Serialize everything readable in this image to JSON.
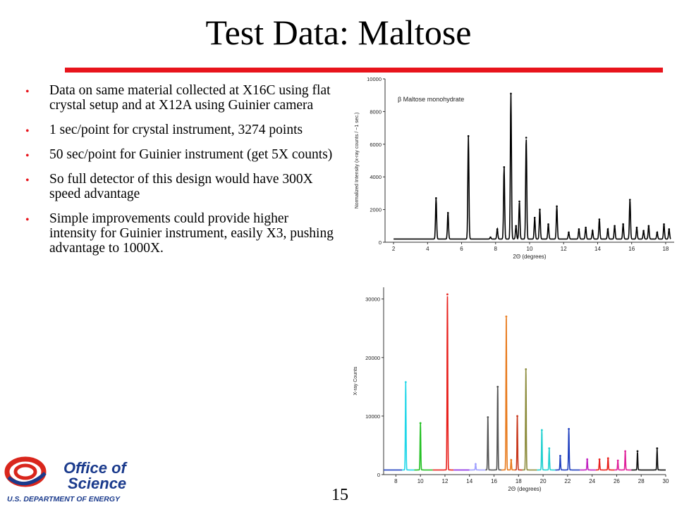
{
  "slide": {
    "title": "Test Data: Maltose",
    "page_number": "15",
    "bullets": [
      "Data on same material collected at X16C using flat crystal setup and at X12A using Guinier camera",
      "1 sec/point for crystal instrument, 3274 points",
      "50 sec/point for Guinier instrument (get 5X counts)",
      "So full detector of this design would have 300X speed advantage",
      "Simple improvements could provide higher intensity for Guinier instrument, easily X3, pushing advantage to 1000X."
    ],
    "accent_color": "#e8141c"
  },
  "logo": {
    "line1": "Office of",
    "line2": "Science",
    "line3": "U.S. DEPARTMENT OF ENERGY",
    "color": "#1a3a8c",
    "swirl_color": "#d9261c"
  },
  "chart_data": [
    {
      "type": "line",
      "title": "",
      "annotation": "β Maltose monohydrate",
      "xlabel": "2Θ (degrees)",
      "ylabel": "Normalized Intensity (x-ray counts / ~1 sec.)",
      "xlim": [
        1.5,
        18.5
      ],
      "ylim": [
        0,
        10000
      ],
      "xticks": [
        2,
        4,
        6,
        8,
        10,
        12,
        14,
        16,
        18
      ],
      "yticks": [
        0,
        2000,
        4000,
        6000,
        8000,
        10000
      ],
      "baseline": 200,
      "color": "#000000",
      "peaks": [
        {
          "x": 4.5,
          "y": 2700
        },
        {
          "x": 5.2,
          "y": 1800
        },
        {
          "x": 6.4,
          "y": 6500
        },
        {
          "x": 7.7,
          "y": 300
        },
        {
          "x": 8.1,
          "y": 800
        },
        {
          "x": 8.5,
          "y": 4600
        },
        {
          "x": 8.9,
          "y": 9100
        },
        {
          "x": 9.2,
          "y": 1000
        },
        {
          "x": 9.4,
          "y": 2500
        },
        {
          "x": 9.8,
          "y": 6400
        },
        {
          "x": 10.3,
          "y": 1500
        },
        {
          "x": 10.6,
          "y": 2000
        },
        {
          "x": 11.1,
          "y": 1100
        },
        {
          "x": 11.6,
          "y": 2200
        },
        {
          "x": 12.3,
          "y": 600
        },
        {
          "x": 12.9,
          "y": 800
        },
        {
          "x": 13.3,
          "y": 900
        },
        {
          "x": 13.7,
          "y": 700
        },
        {
          "x": 14.1,
          "y": 1400
        },
        {
          "x": 14.6,
          "y": 800
        },
        {
          "x": 15.0,
          "y": 1000
        },
        {
          "x": 15.5,
          "y": 1100
        },
        {
          "x": 15.9,
          "y": 2600
        },
        {
          "x": 16.3,
          "y": 900
        },
        {
          "x": 16.7,
          "y": 700
        },
        {
          "x": 17.0,
          "y": 1000
        },
        {
          "x": 17.5,
          "y": 600
        },
        {
          "x": 17.9,
          "y": 1100
        },
        {
          "x": 18.2,
          "y": 800
        }
      ]
    },
    {
      "type": "line",
      "title": "",
      "xlabel": "2Θ (degrees)",
      "ylabel": "X-ray Counts",
      "xlim": [
        7,
        30
      ],
      "ylim": [
        0,
        32000
      ],
      "xticks": [
        8,
        10,
        12,
        14,
        16,
        18,
        20,
        22,
        24,
        26,
        28,
        30
      ],
      "yticks": [
        0,
        10000,
        20000,
        30000
      ],
      "baseline": 800,
      "segments": [
        {
          "color": "#1f3fbf",
          "x_range": [
            7,
            8.5
          ],
          "peaks": []
        },
        {
          "color": "#1fd6e8",
          "x_range": [
            8.5,
            9.5
          ],
          "peaks": [
            {
              "x": 8.8,
              "y": 15800
            }
          ]
        },
        {
          "color": "#22c022",
          "x_range": [
            9.5,
            11
          ],
          "peaks": [
            {
              "x": 10.0,
              "y": 8800
            }
          ]
        },
        {
          "color": "#e8201c",
          "x_range": [
            11,
            12.7
          ],
          "peaks": [
            {
              "x": 12.2,
              "y": 30800
            }
          ]
        },
        {
          "color": "#8a2be2",
          "x_range": [
            12.7,
            14
          ],
          "peaks": []
        },
        {
          "color": "#a0a0ff",
          "x_range": [
            14,
            15.3
          ],
          "peaks": [
            {
              "x": 14.5,
              "y": 1800
            }
          ]
        },
        {
          "color": "#555555",
          "x_range": [
            15.3,
            16.6
          ],
          "peaks": [
            {
              "x": 15.5,
              "y": 9800
            },
            {
              "x": 16.3,
              "y": 15000
            }
          ]
        },
        {
          "color": "#e87a1c",
          "x_range": [
            16.6,
            17.7
          ],
          "peaks": [
            {
              "x": 17.0,
              "y": 27000
            },
            {
              "x": 17.4,
              "y": 2500
            }
          ]
        },
        {
          "color": "#c8381c",
          "x_range": [
            17.7,
            18.3
          ],
          "peaks": [
            {
              "x": 17.9,
              "y": 10000
            }
          ]
        },
        {
          "color": "#8c8c3c",
          "x_range": [
            18.3,
            19.5
          ],
          "peaks": [
            {
              "x": 18.6,
              "y": 18000
            }
          ]
        },
        {
          "color": "#20d0d0",
          "x_range": [
            19.5,
            21
          ],
          "peaks": [
            {
              "x": 19.9,
              "y": 7600
            },
            {
              "x": 20.5,
              "y": 4500
            }
          ]
        },
        {
          "color": "#1f3fbf",
          "x_range": [
            21,
            23
          ],
          "peaks": [
            {
              "x": 21.4,
              "y": 3200
            },
            {
              "x": 22.1,
              "y": 7800
            }
          ]
        },
        {
          "color": "#c020c0",
          "x_range": [
            23,
            24.3
          ],
          "peaks": [
            {
              "x": 23.6,
              "y": 2600
            }
          ]
        },
        {
          "color": "#e8201c",
          "x_range": [
            24.3,
            25.8
          ],
          "peaks": [
            {
              "x": 24.6,
              "y": 2600
            },
            {
              "x": 25.3,
              "y": 2800
            }
          ]
        },
        {
          "color": "#e0209a",
          "x_range": [
            25.8,
            27.2
          ],
          "peaks": [
            {
              "x": 26.1,
              "y": 2400
            },
            {
              "x": 26.7,
              "y": 4000
            }
          ]
        },
        {
          "color": "#111111",
          "x_range": [
            27.2,
            30
          ],
          "peaks": [
            {
              "x": 27.7,
              "y": 4000
            },
            {
              "x": 29.3,
              "y": 4500
            }
          ]
        }
      ]
    }
  ]
}
